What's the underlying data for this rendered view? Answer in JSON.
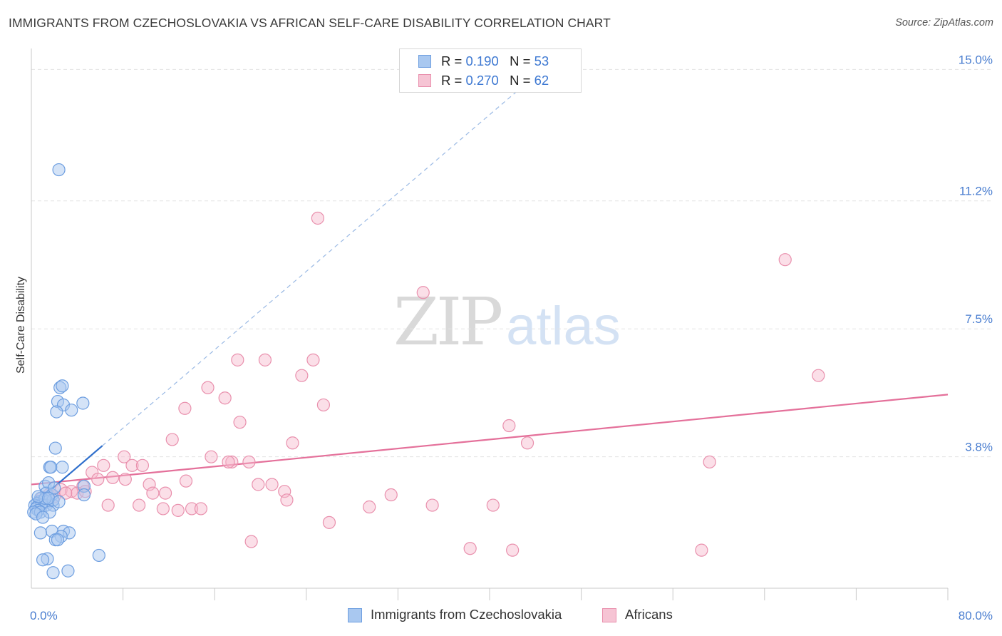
{
  "header": {
    "title": "IMMIGRANTS FROM CZECHOSLOVAKIA VS AFRICAN SELF-CARE DISABILITY CORRELATION CHART",
    "source": "Source: ZipAtlas.com"
  },
  "watermark": {
    "zip": "ZIP",
    "atlas": "atlas"
  },
  "legend": {
    "r_label": "R =",
    "n_label": "N =",
    "blue": {
      "r": "0.190",
      "n": "53"
    },
    "pink": {
      "r": "0.270",
      "n": "62"
    }
  },
  "bottom_legend": {
    "blue_label": "Immigrants from Czechoslovakia",
    "pink_label": "Africans"
  },
  "colors": {
    "blue_fill": "#a9c8f0",
    "blue_stroke": "#6d9ee0",
    "blue_line": "#2f6fcc",
    "pink_fill": "#f6b8cb",
    "pink_stroke": "#e990ad",
    "pink_line": "#e4709a",
    "grid": "#e3e3e3",
    "tick_text": "#4a7ed0"
  },
  "chart_data": {
    "type": "scatter",
    "title": "IMMIGRANTS FROM CZECHOSLOVAKIA VS AFRICAN SELF-CARE DISABILITY CORRELATION CHART",
    "xlabel": "",
    "ylabel": "Self-Care Disability",
    "xlim": [
      0,
      80
    ],
    "ylim": [
      0,
      15.4
    ],
    "x_tick_labels": [
      {
        "value": 0,
        "label": "0.0%"
      },
      {
        "value": 80,
        "label": "80.0%"
      }
    ],
    "x_minor_ticks": [
      8,
      16,
      24,
      32,
      40,
      48,
      56,
      64,
      72,
      80
    ],
    "y_ticks": [
      {
        "value": 3.8,
        "label": "3.8%"
      },
      {
        "value": 7.5,
        "label": "7.5%"
      },
      {
        "value": 11.2,
        "label": "11.2%"
      },
      {
        "value": 15.0,
        "label": "15.0%"
      }
    ],
    "grid": true,
    "series": [
      {
        "name": "Immigrants from Czechoslovakia",
        "color": "blue",
        "R": 0.19,
        "N": 53,
        "trend_solid": {
          "x": [
            0.3,
            6.2
          ],
          "y": [
            2.45,
            4.12
          ]
        },
        "trend_dashed": {
          "x": [
            6.2,
            42.5
          ],
          "y": [
            4.12,
            14.4
          ]
        },
        "points": [
          [
            2.4,
            12.1
          ],
          [
            2.5,
            5.8
          ],
          [
            2.7,
            5.85
          ],
          [
            2.3,
            5.4
          ],
          [
            2.8,
            5.3
          ],
          [
            4.5,
            5.35
          ],
          [
            2.2,
            5.1
          ],
          [
            3.5,
            5.15
          ],
          [
            2.1,
            4.05
          ],
          [
            1.6,
            3.5
          ],
          [
            1.7,
            3.5
          ],
          [
            2.7,
            3.5
          ],
          [
            4.6,
            2.95
          ],
          [
            1.2,
            2.95
          ],
          [
            1.5,
            3.05
          ],
          [
            4.6,
            2.7
          ],
          [
            1.3,
            2.75
          ],
          [
            1.8,
            2.7
          ],
          [
            0.8,
            2.6
          ],
          [
            1.1,
            2.55
          ],
          [
            0.7,
            2.5
          ],
          [
            0.5,
            2.45
          ],
          [
            1.4,
            2.5
          ],
          [
            0.3,
            2.4
          ],
          [
            0.5,
            2.35
          ],
          [
            0.9,
            2.4
          ],
          [
            0.4,
            2.3
          ],
          [
            1.3,
            2.4
          ],
          [
            1.9,
            2.4
          ],
          [
            0.6,
            2.25
          ],
          [
            0.2,
            2.2
          ],
          [
            0.8,
            2.2
          ],
          [
            1.6,
            2.2
          ],
          [
            0.4,
            2.15
          ],
          [
            1.0,
            2.05
          ],
          [
            2.8,
            1.65
          ],
          [
            1.8,
            1.65
          ],
          [
            3.3,
            1.6
          ],
          [
            0.8,
            1.6
          ],
          [
            2.6,
            1.5
          ],
          [
            2.1,
            1.4
          ],
          [
            2.3,
            1.4
          ],
          [
            5.9,
            0.95
          ],
          [
            1.4,
            0.85
          ],
          [
            1.0,
            0.82
          ],
          [
            1.9,
            0.45
          ],
          [
            3.2,
            0.5
          ],
          [
            1.9,
            2.55
          ],
          [
            1.2,
            2.6
          ],
          [
            0.6,
            2.65
          ],
          [
            2.0,
            2.9
          ],
          [
            1.5,
            2.6
          ],
          [
            2.4,
            2.5
          ]
        ]
      },
      {
        "name": "Africans",
        "color": "pink",
        "R": 0.27,
        "N": 62,
        "trend": {
          "x": [
            0,
            80
          ],
          "y": [
            3.0,
            5.6
          ]
        },
        "points": [
          [
            25.0,
            10.7
          ],
          [
            65.8,
            9.5
          ],
          [
            34.2,
            8.55
          ],
          [
            18.0,
            6.6
          ],
          [
            20.4,
            6.6
          ],
          [
            24.6,
            6.6
          ],
          [
            68.7,
            6.15
          ],
          [
            23.6,
            6.15
          ],
          [
            15.4,
            5.8
          ],
          [
            16.9,
            5.5
          ],
          [
            25.5,
            5.3
          ],
          [
            13.4,
            5.2
          ],
          [
            18.2,
            4.8
          ],
          [
            41.7,
            4.7
          ],
          [
            12.3,
            4.3
          ],
          [
            22.8,
            4.2
          ],
          [
            43.3,
            4.2
          ],
          [
            59.2,
            3.65
          ],
          [
            15.7,
            3.8
          ],
          [
            17.5,
            3.65
          ],
          [
            8.1,
            3.8
          ],
          [
            6.3,
            3.55
          ],
          [
            8.8,
            3.55
          ],
          [
            9.7,
            3.55
          ],
          [
            17.2,
            3.65
          ],
          [
            19.0,
            3.65
          ],
          [
            5.3,
            3.35
          ],
          [
            5.8,
            3.15
          ],
          [
            8.2,
            3.15
          ],
          [
            10.3,
            3.0
          ],
          [
            13.5,
            3.1
          ],
          [
            7.1,
            3.2
          ],
          [
            19.8,
            3.0
          ],
          [
            21.0,
            3.0
          ],
          [
            22.1,
            2.8
          ],
          [
            4.5,
            2.95
          ],
          [
            10.6,
            2.75
          ],
          [
            11.7,
            2.75
          ],
          [
            2.6,
            2.85
          ],
          [
            3.5,
            2.8
          ],
          [
            4.0,
            2.75
          ],
          [
            1.5,
            2.7
          ],
          [
            0.9,
            2.6
          ],
          [
            22.3,
            2.55
          ],
          [
            31.4,
            2.7
          ],
          [
            6.7,
            2.4
          ],
          [
            9.4,
            2.4
          ],
          [
            11.5,
            2.3
          ],
          [
            12.8,
            2.25
          ],
          [
            14.0,
            2.3
          ],
          [
            14.8,
            2.3
          ],
          [
            29.5,
            2.35
          ],
          [
            35.0,
            2.4
          ],
          [
            40.3,
            2.4
          ],
          [
            26.0,
            1.9
          ],
          [
            19.2,
            1.35
          ],
          [
            38.3,
            1.15
          ],
          [
            42.0,
            1.1
          ],
          [
            58.5,
            1.1
          ],
          [
            4.7,
            2.8
          ],
          [
            3.0,
            2.75
          ],
          [
            2.0,
            2.65
          ]
        ]
      }
    ]
  }
}
